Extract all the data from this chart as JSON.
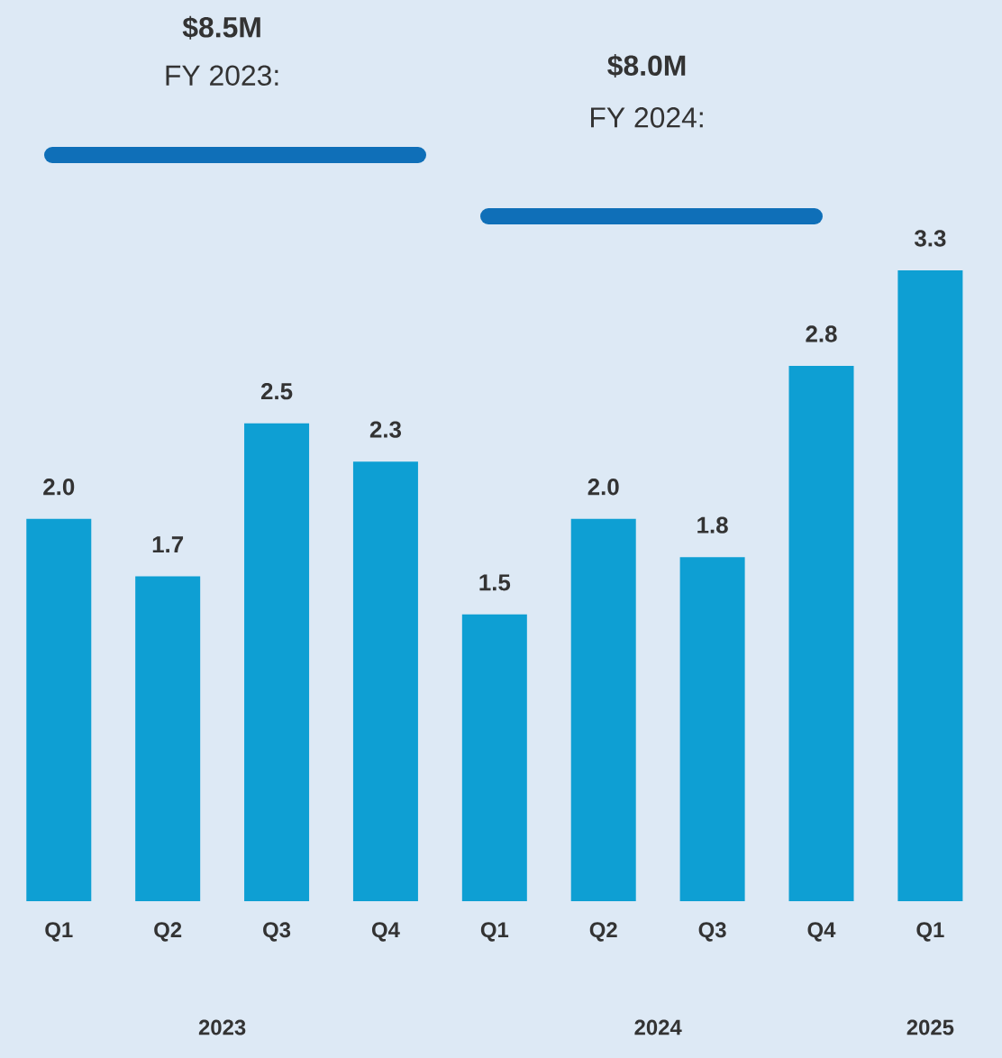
{
  "chart_data": {
    "type": "bar",
    "categories": [
      "Q1",
      "Q2",
      "Q3",
      "Q4",
      "Q1",
      "Q2",
      "Q3",
      "Q4",
      "Q1"
    ],
    "values": [
      2.0,
      1.7,
      2.5,
      2.3,
      1.5,
      2.0,
      1.8,
      2.8,
      3.3
    ],
    "value_labels": [
      "2.0",
      "1.7",
      "2.5",
      "2.3",
      "1.5",
      "2.0",
      "1.8",
      "2.8",
      "3.3"
    ],
    "color": "#0e9fd3",
    "annotations": [
      "$8.5M",
      "FY 2023:",
      "$8.0M",
      "FY 2024:",
      "2023",
      "2024",
      "2025"
    ]
  }
}
